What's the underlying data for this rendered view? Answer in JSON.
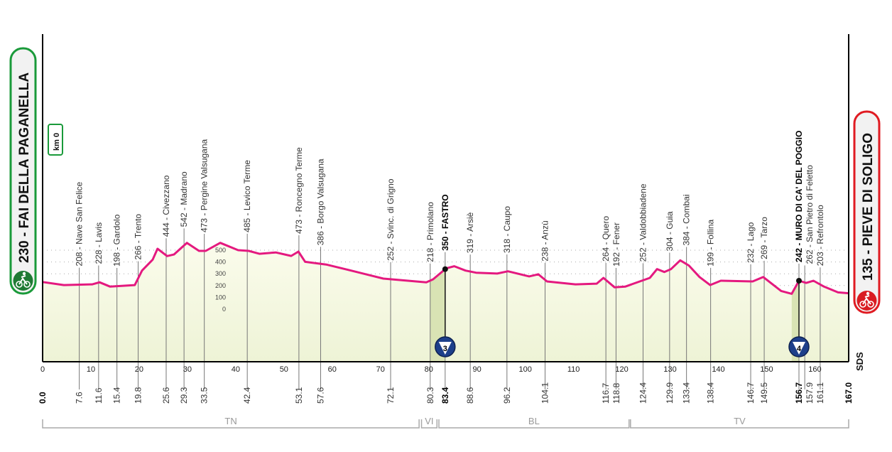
{
  "chart_data": {
    "type": "area",
    "title": "",
    "xlabel": "",
    "ylabel": "",
    "xlim": [
      0,
      167
    ],
    "x_ticks": [
      0,
      10,
      20,
      30,
      40,
      50,
      60,
      70,
      80,
      90,
      100,
      110,
      120,
      130,
      140,
      150,
      160
    ],
    "altitude_ticks": [
      0,
      100,
      200,
      300,
      400,
      500
    ],
    "grid": true,
    "line_color": "#e4197f",
    "fill_color": "#f7f8e4",
    "climb_fill_color": "#d9e3b4",
    "profile": [
      [
        0,
        230
      ],
      [
        4.4,
        204
      ],
      [
        10.3,
        210
      ],
      [
        11.8,
        228
      ],
      [
        14.0,
        191
      ],
      [
        19.1,
        204
      ],
      [
        20.6,
        327
      ],
      [
        22.8,
        420
      ],
      [
        23.8,
        512
      ],
      [
        25.8,
        450
      ],
      [
        27.2,
        463
      ],
      [
        29.9,
        562
      ],
      [
        32.4,
        494
      ],
      [
        33.8,
        494
      ],
      [
        36.8,
        562
      ],
      [
        40.5,
        500
      ],
      [
        42.7,
        494
      ],
      [
        44.9,
        469
      ],
      [
        48.3,
        481
      ],
      [
        51.5,
        451
      ],
      [
        53.0,
        488
      ],
      [
        54.4,
        401
      ],
      [
        58.9,
        377
      ],
      [
        63.3,
        333
      ],
      [
        70.6,
        259
      ],
      [
        79.5,
        228
      ],
      [
        80.9,
        253
      ],
      [
        83.6,
        346
      ],
      [
        85.3,
        364
      ],
      [
        87.6,
        327
      ],
      [
        89.8,
        309
      ],
      [
        94.2,
        302
      ],
      [
        96.4,
        321
      ],
      [
        100.8,
        278
      ],
      [
        102.7,
        296
      ],
      [
        104.5,
        235
      ],
      [
        110.4,
        210
      ],
      [
        114.8,
        216
      ],
      [
        116.2,
        265
      ],
      [
        118.5,
        185
      ],
      [
        120.7,
        191
      ],
      [
        125.8,
        265
      ],
      [
        127.3,
        340
      ],
      [
        128.8,
        315
      ],
      [
        130.2,
        340
      ],
      [
        132.1,
        414
      ],
      [
        133.9,
        370
      ],
      [
        136.1,
        272
      ],
      [
        138.3,
        204
      ],
      [
        140.5,
        241
      ],
      [
        147.1,
        235
      ],
      [
        149.3,
        272
      ],
      [
        153.0,
        154
      ],
      [
        155.2,
        130
      ],
      [
        156.7,
        241
      ],
      [
        158.2,
        222
      ],
      [
        159.7,
        241
      ],
      [
        161.9,
        191
      ],
      [
        164.8,
        142
      ],
      [
        167.0,
        135
      ]
    ],
    "waypoints": [
      {
        "km": "0.0",
        "label": "",
        "bold": true
      },
      {
        "km": "7.6",
        "label": "208 - Nave San Felice"
      },
      {
        "km": "11.6",
        "label": "228 - Lavis"
      },
      {
        "km": "15.4",
        "label": "198 - Gardolo"
      },
      {
        "km": "19.8",
        "label": "266 - Trento"
      },
      {
        "km": "25.6",
        "label": "444 - Civezzano"
      },
      {
        "km": "29.3",
        "label": "542 - Madrano"
      },
      {
        "km": "33.5",
        "label": "473 - Pergine Valsugana"
      },
      {
        "km": "42.4",
        "label": "485 - Levico Terme"
      },
      {
        "km": "53.1",
        "label": "473 - Roncegno Terme"
      },
      {
        "km": "57.6",
        "label": "386 - Borgo Valsugana"
      },
      {
        "km": "72.1",
        "label": "252 - Svinc. di Grigno"
      },
      {
        "km": "80.3",
        "label": "218 - Primolano"
      },
      {
        "km": "83.4",
        "label": "350 - FASTRO",
        "bold": true
      },
      {
        "km": "88.6",
        "label": "319 - Arsiè"
      },
      {
        "km": "96.2",
        "label": "318 - Caupo"
      },
      {
        "km": "104.1",
        "label": "238 - Anzù"
      },
      {
        "km": "116.7",
        "label": "264 - Quero"
      },
      {
        "km": "118.8",
        "label": "192 - Fener"
      },
      {
        "km": "124.4",
        "label": "252 - Valdobbiadene"
      },
      {
        "km": "129.9",
        "label": "304 - Guia"
      },
      {
        "km": "133.4",
        "label": "384 - Combai"
      },
      {
        "km": "138.4",
        "label": "199 - Follina"
      },
      {
        "km": "146.7",
        "label": "232 - Lago"
      },
      {
        "km": "149.5",
        "label": "269 - Tarzo"
      },
      {
        "km": "156.7",
        "label": "242 - MURO DI CA' DEL POGGIO",
        "bold": true
      },
      {
        "km": "157.9",
        "label": "262 - San Pietro di Feletto"
      },
      {
        "km": "161.1",
        "label": "203 - Refrontolo"
      },
      {
        "km": "167.0",
        "label": "",
        "bold": true
      }
    ],
    "climbs": [
      {
        "start_km": 80.3,
        "summit_km": 83.4,
        "category": "3"
      },
      {
        "start_km": 155.2,
        "summit_km": 156.7,
        "category": "4"
      }
    ],
    "provinces": [
      {
        "label": "TN",
        "from_km": 0,
        "to_km": 78
      },
      {
        "label": "VI",
        "from_km": 78.5,
        "to_km": 81.7
      },
      {
        "label": "BL",
        "from_km": 82.1,
        "to_km": 121.5
      },
      {
        "label": "TV",
        "from_km": 121.8,
        "to_km": 167
      }
    ]
  },
  "start": {
    "label": "230 - FAI DELLA PAGANELLA",
    "km_badge": "km 0",
    "color": "#1a9a3a"
  },
  "finish": {
    "label": "135 - PIEVE DI SOLIGO",
    "color": "#e01b22"
  },
  "logo": "SDS"
}
